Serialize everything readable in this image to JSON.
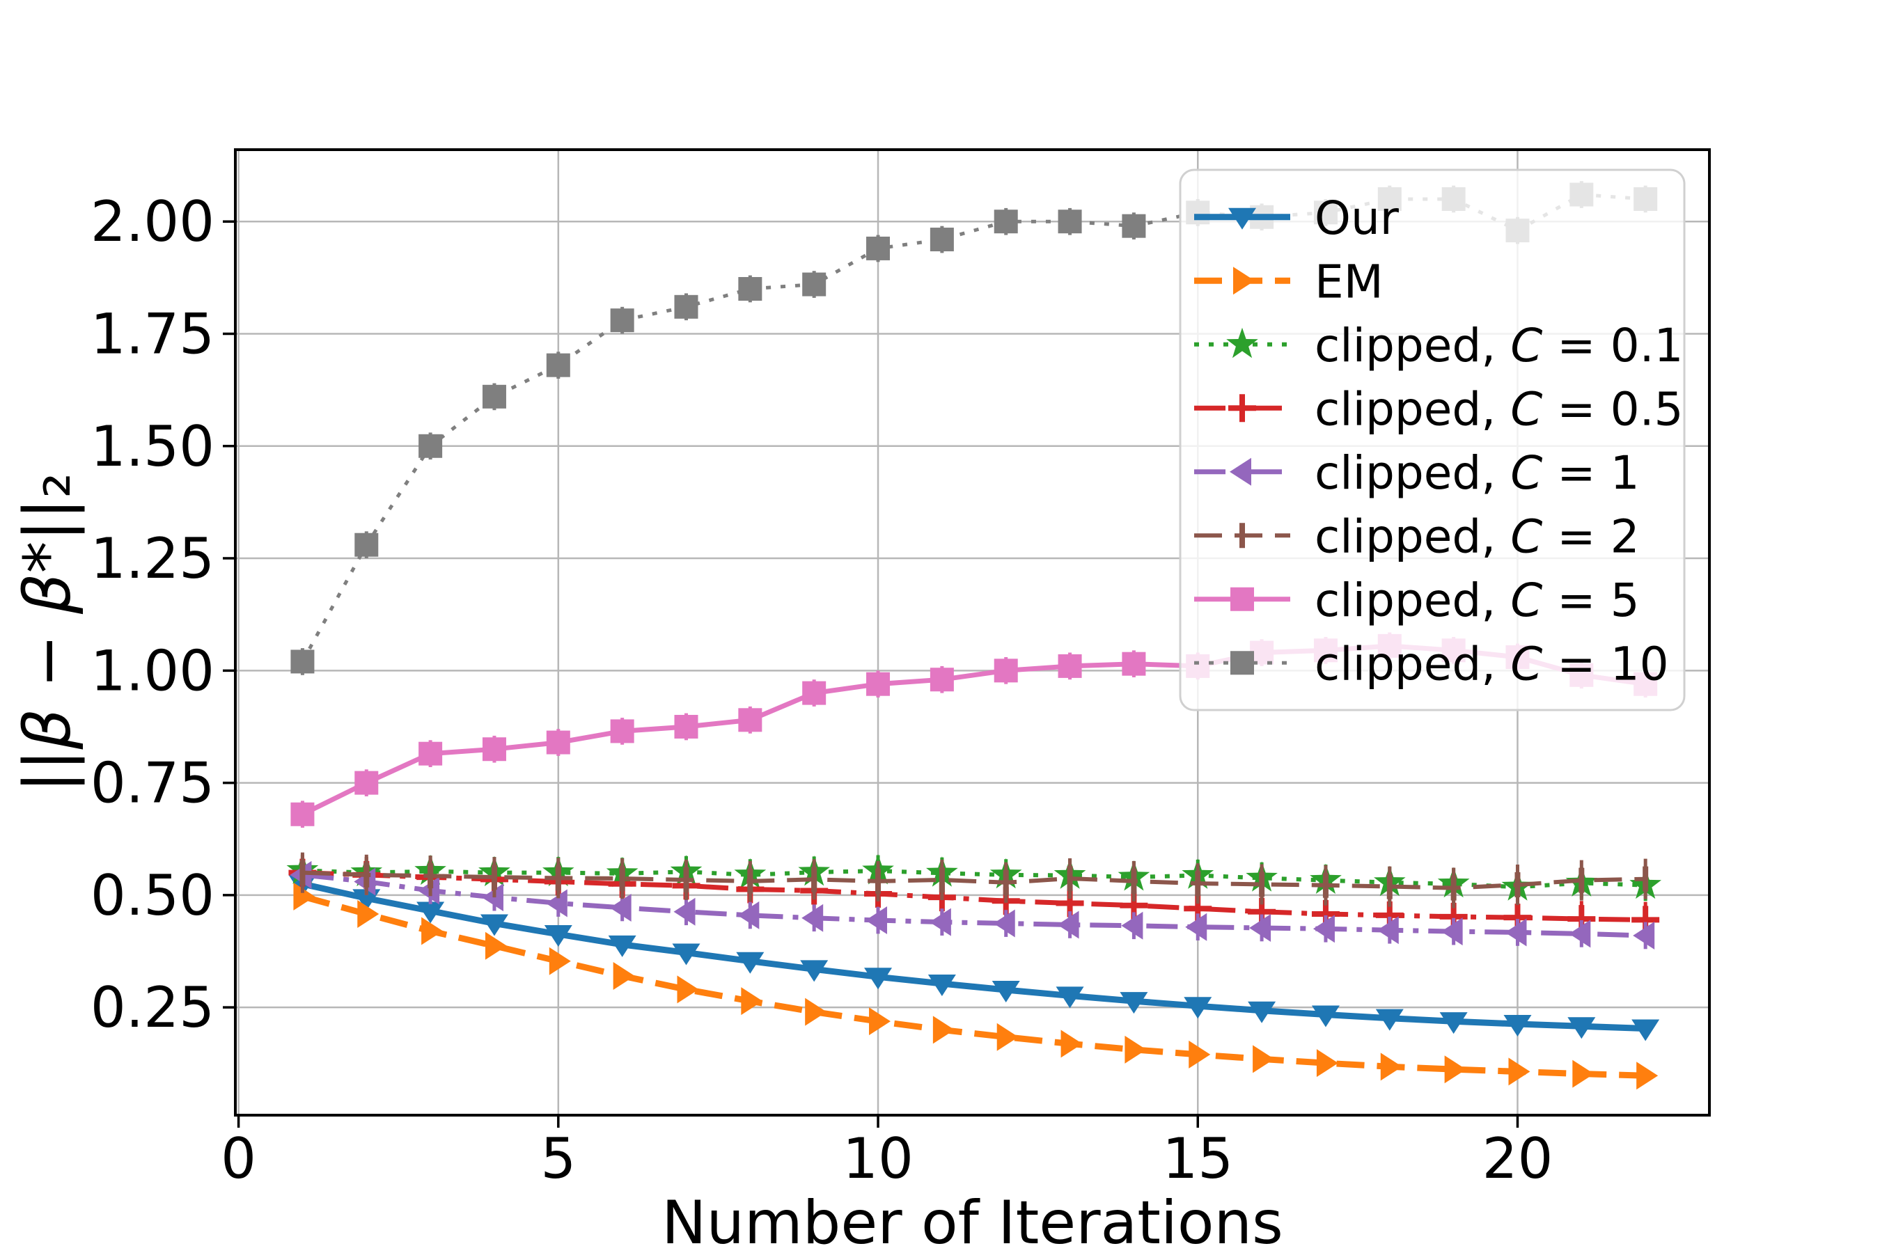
{
  "chart_data": {
    "type": "line",
    "title": "",
    "xlabel": "Number of Iterations",
    "ylabel": "||β − β*||₂",
    "xlim": [
      -0.05,
      23.0
    ],
    "ylim": [
      0.01,
      2.16
    ],
    "xticks": [
      0,
      5,
      10,
      15,
      20
    ],
    "xtick_labels": [
      "0",
      "5",
      "10",
      "15",
      "20"
    ],
    "yticks": [
      0.25,
      0.5,
      0.75,
      1.0,
      1.25,
      1.5,
      1.75,
      2.0
    ],
    "ytick_labels": [
      "0.25",
      "0.50",
      "0.75",
      "1.00",
      "1.25",
      "1.50",
      "1.75",
      "2.00"
    ],
    "grid": true,
    "grid_color": "#b7b7b7",
    "background_color": "#ffffff",
    "spine_color": "#000000",
    "legend_position": "upper right",
    "x": [
      1,
      2,
      3,
      4,
      5,
      6,
      7,
      8,
      9,
      10,
      11,
      12,
      13,
      14,
      15,
      16,
      17,
      18,
      19,
      20,
      21,
      22
    ],
    "series": [
      {
        "name": "Our",
        "color": "#1f77b4",
        "linestyle": "solid",
        "marker": "triangle-down",
        "linewidth": 9,
        "yerr": 0.015,
        "values": [
          0.525,
          0.493,
          0.465,
          0.437,
          0.413,
          0.39,
          0.372,
          0.353,
          0.335,
          0.318,
          0.303,
          0.289,
          0.276,
          0.264,
          0.253,
          0.243,
          0.234,
          0.226,
          0.219,
          0.213,
          0.208,
          0.203
        ]
      },
      {
        "name": "EM",
        "color": "#ff7f0e",
        "linestyle": "dashed",
        "marker": "triangle-right",
        "linewidth": 9,
        "yerr": 0.015,
        "values": [
          0.497,
          0.458,
          0.42,
          0.387,
          0.353,
          0.32,
          0.29,
          0.264,
          0.24,
          0.219,
          0.2,
          0.184,
          0.169,
          0.156,
          0.145,
          0.135,
          0.126,
          0.118,
          0.112,
          0.107,
          0.102,
          0.098
        ]
      },
      {
        "name": "clipped, C = 0.1",
        "color": "#2ca02c",
        "linestyle": "dotted",
        "marker": "star",
        "linewidth": 6,
        "yerr": 0.035,
        "values": [
          0.555,
          0.55,
          0.553,
          0.55,
          0.55,
          0.548,
          0.552,
          0.545,
          0.551,
          0.554,
          0.549,
          0.545,
          0.544,
          0.54,
          0.544,
          0.538,
          0.533,
          0.528,
          0.525,
          0.518,
          0.527,
          0.522
        ]
      },
      {
        "name": "clipped, C = 0.5",
        "color": "#d62728",
        "linestyle": "dashdot",
        "marker": "plus",
        "linewidth": 7,
        "yerr": 0.04,
        "values": [
          0.55,
          0.545,
          0.54,
          0.535,
          0.53,
          0.525,
          0.521,
          0.513,
          0.51,
          0.503,
          0.495,
          0.487,
          0.482,
          0.477,
          0.47,
          0.463,
          0.458,
          0.455,
          0.452,
          0.45,
          0.447,
          0.445
        ]
      },
      {
        "name": "clipped, C = 1",
        "color": "#9467bd",
        "linestyle": "dashdot",
        "marker": "triangle-left",
        "linewidth": 7,
        "yerr": 0.03,
        "values": [
          0.545,
          0.53,
          0.51,
          0.495,
          0.482,
          0.472,
          0.463,
          0.455,
          0.449,
          0.444,
          0.44,
          0.437,
          0.434,
          0.432,
          0.429,
          0.427,
          0.425,
          0.422,
          0.419,
          0.417,
          0.414,
          0.41
        ]
      },
      {
        "name": "clipped, C = 2",
        "color": "#8c564b",
        "linestyle": "dashed",
        "marker": "vline",
        "linewidth": 6,
        "yerr": 0.045,
        "values": [
          0.55,
          0.545,
          0.543,
          0.54,
          0.538,
          0.537,
          0.534,
          0.531,
          0.535,
          0.531,
          0.534,
          0.528,
          0.537,
          0.531,
          0.526,
          0.524,
          0.522,
          0.519,
          0.516,
          0.523,
          0.533,
          0.536
        ]
      },
      {
        "name": "clipped, C = 5",
        "color": "#e377c2",
        "linestyle": "solid",
        "marker": "square",
        "linewidth": 7,
        "yerr": 0.03,
        "values": [
          0.68,
          0.75,
          0.815,
          0.825,
          0.84,
          0.865,
          0.875,
          0.89,
          0.95,
          0.97,
          0.98,
          1.0,
          1.01,
          1.015,
          1.01,
          1.04,
          1.045,
          1.055,
          1.045,
          1.03,
          0.99,
          0.97
        ]
      },
      {
        "name": "clipped, C = 10",
        "color": "#7f7f7f",
        "linestyle": "dotted",
        "marker": "square",
        "linewidth": 5,
        "yerr": 0.03,
        "values": [
          1.02,
          1.28,
          1.5,
          1.61,
          1.68,
          1.78,
          1.81,
          1.85,
          1.86,
          1.94,
          1.96,
          2.0,
          2.0,
          1.99,
          2.02,
          2.01,
          2.02,
          2.05,
          2.05,
          1.98,
          2.06,
          2.05
        ]
      }
    ],
    "legend": {
      "labels": [
        "Our",
        "EM",
        "clipped, C = 0.1",
        "clipped, C = 0.5",
        "clipped, C = 1",
        "clipped, C = 2",
        "clipped, C = 5",
        "clipped, C = 10"
      ],
      "border_color": "#d0d0d0",
      "fill_opacity": 0.8
    }
  }
}
